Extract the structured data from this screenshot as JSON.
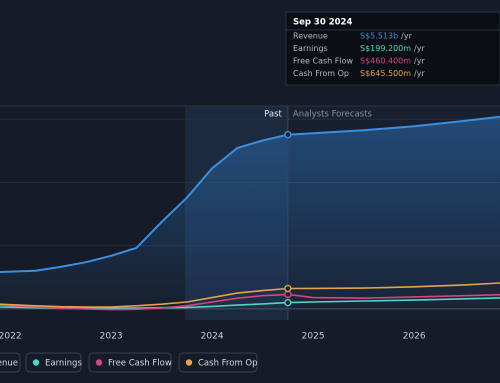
{
  "chart_data": {
    "type": "line",
    "x": [
      2021.9,
      2022.25,
      2022.5,
      2022.75,
      2023.0,
      2023.25,
      2023.5,
      2023.75,
      2024.0,
      2024.25,
      2024.5,
      2024.75,
      2025.0,
      2025.5,
      2026.0,
      2026.5,
      2026.85
    ],
    "series": [
      {
        "name": "Revenue",
        "color": "#3b8fe0",
        "values": [
          1.17,
          1.21,
          1.33,
          1.48,
          1.68,
          1.93,
          2.75,
          3.52,
          4.45,
          5.09,
          5.33,
          5.513,
          5.56,
          5.65,
          5.78,
          5.95,
          6.08
        ]
      },
      {
        "name": "Earnings",
        "color": "#4fd6c8",
        "values": [
          0.06,
          0.04,
          0.02,
          0.02,
          0.02,
          0.03,
          0.04,
          0.05,
          0.08,
          0.12,
          0.16,
          0.1992,
          0.22,
          0.25,
          0.28,
          0.32,
          0.35
        ]
      },
      {
        "name": "Free Cash Flow",
        "color": "#d6457b",
        "values": [
          0.12,
          0.06,
          0.02,
          0.0,
          -0.02,
          -0.01,
          0.03,
          0.1,
          0.22,
          0.34,
          0.42,
          0.4604,
          0.36,
          0.34,
          0.38,
          0.42,
          0.45
        ]
      },
      {
        "name": "Cash From Op",
        "color": "#e4a24c",
        "values": [
          0.15,
          0.1,
          0.07,
          0.06,
          0.06,
          0.1,
          0.15,
          0.22,
          0.36,
          0.5,
          0.58,
          0.6455,
          0.65,
          0.66,
          0.7,
          0.76,
          0.82
        ]
      }
    ],
    "xlim": [
      2021.9,
      2026.85
    ],
    "xticks": [
      2022,
      2023,
      2024,
      2025,
      2026
    ],
    "ylim": [
      -0.35,
      6.42
    ],
    "yticks": [
      0,
      2,
      4,
      6
    ],
    "grid": true,
    "past_end": 2024.75,
    "past_label": "Past",
    "forecast_label": "Analysts Forecasts",
    "tooltip": {
      "date": "Sep 30 2024",
      "rows": [
        {
          "label": "Revenue",
          "value": "S$5.513b",
          "unit": "/yr",
          "color": "#3b8fe0"
        },
        {
          "label": "Earnings",
          "value": "S$199.200m",
          "unit": "/yr",
          "color": "#4fd6c8"
        },
        {
          "label": "Free Cash Flow",
          "value": "S$460.400m",
          "unit": "/yr",
          "color": "#d6457b"
        },
        {
          "label": "Cash From Op",
          "value": "S$645.500m",
          "unit": "/yr",
          "color": "#e4a24c"
        }
      ]
    }
  }
}
